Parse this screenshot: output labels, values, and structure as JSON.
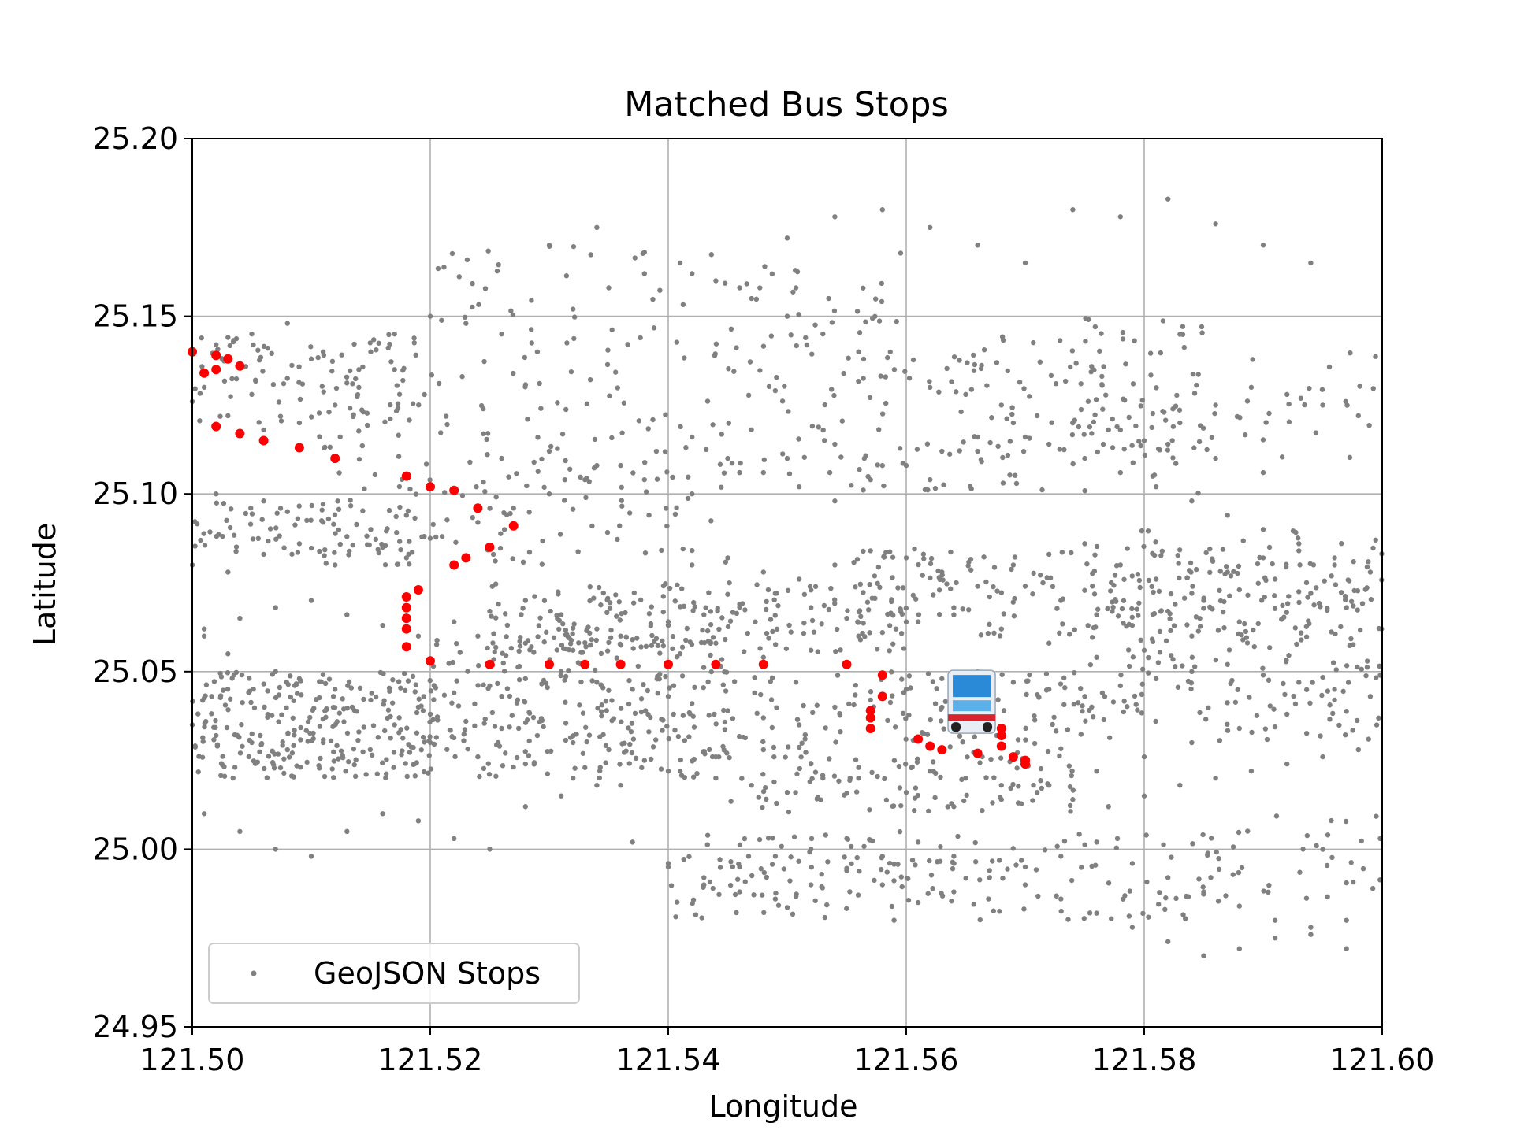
{
  "chart_data": {
    "type": "scatter",
    "title": "Matched Bus Stops",
    "xlabel": "Longitude",
    "ylabel": "Latitude",
    "xlim": [
      121.5,
      121.6
    ],
    "ylim": [
      24.95,
      25.2
    ],
    "xticks": [
      "121.50",
      "121.52",
      "121.54",
      "121.56",
      "121.58",
      "121.60"
    ],
    "yticks": [
      "24.95",
      "25.00",
      "25.05",
      "25.10",
      "25.15",
      "25.20"
    ],
    "grid": true,
    "legend": {
      "position": "lower-left",
      "entries": [
        "GeoJSON Stops"
      ]
    },
    "colors": {
      "geojson": "#808080",
      "matched": "#ff0000",
      "grid": "#b0b0b0"
    },
    "bus_icon": {
      "name": "bus-icon",
      "x": 121.5655,
      "y": 25.0415
    },
    "matched_stops": {
      "x": [
        121.5,
        121.501,
        121.502,
        121.503,
        121.502,
        121.504,
        121.502,
        121.504,
        121.506,
        121.509,
        121.512,
        121.518,
        121.52,
        121.522,
        121.524,
        121.527,
        121.525,
        121.523,
        121.522,
        121.519,
        121.518,
        121.518,
        121.518,
        121.518,
        121.518,
        121.52,
        121.525,
        121.53,
        121.533,
        121.536,
        121.54,
        121.544,
        121.548,
        121.555,
        121.558,
        121.558,
        121.557,
        121.557,
        121.557,
        121.561,
        121.562,
        121.563,
        121.566,
        121.568,
        121.568,
        121.568,
        121.569,
        121.57,
        121.57
      ],
      "y": [
        25.14,
        25.134,
        25.135,
        25.138,
        25.139,
        25.136,
        25.119,
        25.117,
        25.115,
        25.113,
        25.11,
        25.105,
        25.102,
        25.101,
        25.096,
        25.091,
        25.085,
        25.082,
        25.08,
        25.073,
        25.071,
        25.068,
        25.065,
        25.062,
        25.057,
        25.053,
        25.052,
        25.052,
        25.052,
        25.052,
        25.052,
        25.052,
        25.052,
        25.052,
        25.049,
        25.043,
        25.039,
        25.037,
        25.034,
        25.031,
        25.029,
        25.028,
        25.027,
        25.034,
        25.032,
        25.029,
        25.026,
        25.025,
        25.024
      ]
    },
    "geojson_stops": {
      "x": [
        121.501,
        121.505,
        121.5,
        121.51,
        121.515,
        121.503,
        121.506,
        121.509,
        121.512,
        121.514,
        121.517,
        121.502,
        121.506,
        121.508,
        121.511,
        121.513,
        121.516,
        121.518,
        121.501,
        121.503,
        121.507,
        121.509,
        121.512,
        121.515,
        121.519,
        121.522,
        121.525,
        121.528,
        121.531,
        121.534,
        121.537,
        121.54,
        121.542,
        121.545,
        121.548,
        121.551,
        121.554,
        121.557,
        121.56,
        121.563,
        121.566,
        121.569,
        121.572,
        121.575,
        121.578,
        121.581,
        121.584,
        121.587,
        121.59,
        121.593,
        121.596,
        121.599,
        121.5,
        121.502,
        121.505,
        121.508,
        121.511,
        121.514,
        121.517,
        121.52,
        121.523,
        121.526,
        121.529,
        121.532,
        121.535,
        121.538,
        121.541,
        121.544,
        121.547,
        121.55,
        121.553,
        121.556,
        121.559,
        121.562,
        121.565,
        121.568,
        121.571,
        121.574,
        121.577,
        121.58,
        121.583,
        121.586,
        121.589,
        121.592,
        121.595,
        121.598,
        121.501,
        121.504,
        121.507,
        121.51,
        121.513,
        121.516,
        121.519,
        121.522,
        121.525,
        121.528,
        121.531,
        121.534,
        121.537,
        121.54,
        121.543,
        121.546,
        121.549,
        121.552,
        121.555,
        121.558,
        121.561,
        121.564,
        121.567,
        121.57,
        121.573,
        121.576,
        121.579,
        121.582,
        121.585,
        121.588,
        121.591,
        121.594,
        121.597,
        121.5,
        121.503,
        121.506,
        121.509,
        121.512,
        121.515,
        121.518,
        121.521,
        121.524,
        121.527,
        121.53,
        121.533,
        121.536,
        121.539,
        121.542,
        121.545,
        121.548,
        121.551,
        121.554,
        121.557,
        121.56,
        121.563,
        121.566,
        121.569,
        121.572,
        121.575,
        121.578,
        121.581,
        121.584,
        121.587,
        121.59,
        121.593,
        121.596,
        121.599,
        121.502,
        121.505,
        121.508,
        121.511,
        121.514,
        121.517,
        121.52,
        121.523,
        121.526,
        121.529,
        121.532,
        121.535,
        121.538,
        121.541,
        121.544,
        121.547,
        121.55,
        121.553,
        121.556,
        121.559,
        121.562,
        121.565,
        121.568,
        121.571,
        121.574,
        121.577,
        121.58,
        121.583,
        121.586,
        121.589,
        121.592,
        121.595,
        121.598,
        121.501,
        121.504,
        121.507,
        121.51,
        121.513,
        121.516,
        121.519,
        121.522,
        121.525,
        121.528,
        121.531,
        121.534,
        121.537,
        121.54,
        121.543,
        121.546,
        121.549,
        121.552,
        121.555,
        121.558,
        121.561,
        121.564,
        121.567,
        121.57,
        121.573,
        121.576,
        121.579,
        121.582,
        121.585,
        121.588,
        121.591,
        121.594,
        121.597,
        121.54,
        121.543,
        121.546,
        121.549,
        121.552,
        121.555,
        121.558,
        121.561,
        121.564,
        121.567,
        121.57,
        121.573,
        121.576,
        121.579,
        121.582,
        121.585,
        121.588,
        121.591,
        121.594,
        121.597,
        121.542,
        121.545,
        121.548,
        121.551,
        121.554,
        121.557,
        121.56,
        121.563,
        121.566,
        121.569,
        121.572,
        121.575,
        121.578,
        121.581,
        121.584,
        121.587,
        121.59,
        121.593,
        121.596,
        121.53,
        121.534,
        121.538,
        121.542,
        121.546,
        121.55,
        121.554,
        121.558,
        121.562,
        121.566,
        121.57,
        121.574,
        121.578,
        121.582,
        121.586,
        121.59,
        121.594,
        121.526,
        121.53,
        121.534,
        121.538,
        121.542,
        121.546,
        121.55,
        121.554,
        121.558,
        121.562,
        121.566,
        121.57,
        121.574,
        121.578,
        121.582,
        121.586,
        121.59,
        121.524,
        121.528,
        121.532,
        121.536,
        121.54,
        121.544,
        121.548,
        121.552,
        121.556,
        121.56,
        121.564,
        121.568,
        121.572,
        121.576,
        121.58,
        121.584,
        121.588,
        121.52,
        121.524,
        121.528,
        121.532,
        121.536,
        121.54,
        121.544,
        121.548,
        121.552,
        121.556,
        121.56,
        121.564,
        121.568,
        121.572,
        121.576,
        121.58,
        121.584,
        121.588,
        121.592,
        121.596
      ],
      "y": [
        25.13,
        25.128,
        25.126,
        25.138,
        25.14,
        25.122,
        25.118,
        25.12,
        25.125,
        25.13,
        25.135,
        25.1,
        25.098,
        25.095,
        25.092,
        25.088,
        25.085,
        25.082,
        25.06,
        25.055,
        25.05,
        25.048,
        25.045,
        25.042,
        25.04,
        25.044,
        25.046,
        25.048,
        25.05,
        25.047,
        25.045,
        25.043,
        25.041,
        25.039,
        25.037,
        25.035,
        25.04,
        25.042,
        25.045,
        25.048,
        25.05,
        25.047,
        25.045,
        25.043,
        25.046,
        25.048,
        25.05,
        25.052,
        25.049,
        25.047,
        25.045,
        25.043,
        25.035,
        25.032,
        25.03,
        25.028,
        25.03,
        25.033,
        25.035,
        25.038,
        25.036,
        25.034,
        25.032,
        25.03,
        25.028,
        25.025,
        25.022,
        25.02,
        25.018,
        25.016,
        25.02,
        25.023,
        25.025,
        25.022,
        25.02,
        25.018,
        25.016,
        25.014,
        25.012,
        25.015,
        25.018,
        25.02,
        25.022,
        25.024,
        25.026,
        25.028,
        25.062,
        25.065,
        25.068,
        25.07,
        25.066,
        25.063,
        25.06,
        25.064,
        25.067,
        25.07,
        25.066,
        25.062,
        25.059,
        25.063,
        25.066,
        25.069,
        25.072,
        25.068,
        25.065,
        25.061,
        25.064,
        25.068,
        25.071,
        25.074,
        25.07,
        25.066,
        25.063,
        25.067,
        25.07,
        25.073,
        25.076,
        25.072,
        25.068,
        25.08,
        25.078,
        25.083,
        25.086,
        25.08,
        25.09,
        25.094,
        25.088,
        25.092,
        25.096,
        25.1,
        25.104,
        25.108,
        25.112,
        25.116,
        25.11,
        25.106,
        25.102,
        25.098,
        25.104,
        25.108,
        25.112,
        25.116,
        25.12,
        25.114,
        25.11,
        25.106,
        25.102,
        25.098,
        25.094,
        25.09,
        25.086,
        25.082,
        25.078,
        25.142,
        25.145,
        25.148,
        25.14,
        25.135,
        25.145,
        25.15,
        25.148,
        25.145,
        25.14,
        25.152,
        25.158,
        25.162,
        25.165,
        25.16,
        25.155,
        25.15,
        25.145,
        25.14,
        25.135,
        25.13,
        25.128,
        25.125,
        25.122,
        25.12,
        25.118,
        25.115,
        25.12,
        25.125,
        25.13,
        25.128,
        25.125,
        25.122,
        25.01,
        25.005,
        25.0,
        24.998,
        25.005,
        25.01,
        25.008,
        25.003,
        25.0,
        25.012,
        25.015,
        25.018,
        25.002,
        24.996,
        24.992,
        24.995,
        24.998,
        25.0,
        25.003,
        24.99,
        24.985,
        24.988,
        24.992,
        24.995,
        24.998,
        25.002,
        24.996,
        24.992,
        24.988,
        24.984,
        24.98,
        24.976,
        24.972,
        24.995,
        24.99,
        24.988,
        24.986,
        24.99,
        24.994,
        24.998,
        25.002,
        24.998,
        24.994,
        24.99,
        24.986,
        24.982,
        24.978,
        24.974,
        24.97,
        24.972,
        24.975,
        24.978,
        24.98,
        25.08,
        25.082,
        25.078,
        25.076,
        25.08,
        25.084,
        25.082,
        25.078,
        25.074,
        25.08,
        25.083,
        25.086,
        25.08,
        25.076,
        25.072,
        25.078,
        25.082,
        25.084,
        25.08,
        25.17,
        25.175,
        25.168,
        25.162,
        25.158,
        25.172,
        25.178,
        25.18,
        25.175,
        25.17,
        25.165,
        25.18,
        25.178,
        25.183,
        25.176,
        25.17,
        25.165,
        25.11,
        25.112,
        25.108,
        25.104,
        25.1,
        25.106,
        25.11,
        25.114,
        25.108,
        25.104,
        25.112,
        25.116,
        25.12,
        25.118,
        25.114,
        25.11,
        25.106,
        25.06,
        25.058,
        25.056,
        25.06,
        25.064,
        25.058,
        25.054,
        25.056,
        25.06,
        25.064,
        25.066,
        25.062,
        25.058,
        25.054,
        25.056,
        25.06,
        25.064,
        25.03,
        25.026,
        25.024,
        25.02,
        25.018,
        25.022,
        25.026,
        25.028,
        25.024,
        25.02,
        25.016,
        25.012,
        25.014,
        25.018,
        25.022,
        25.026,
        25.03,
        25.034,
        25.038,
        25.042
      ]
    }
  }
}
